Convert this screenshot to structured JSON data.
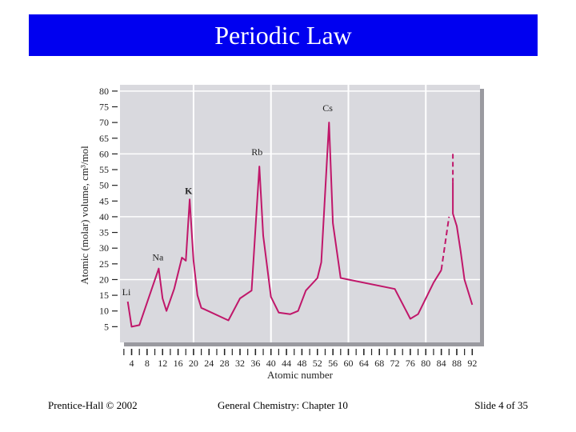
{
  "slide": {
    "title": "Periodic Law",
    "footer_left": "Prentice-Hall © 2002",
    "footer_center": "General Chemistry: Chapter 10",
    "footer_right": "Slide 4 of 35"
  },
  "colors": {
    "title_bar": "#0000f0",
    "line": "#c0176a",
    "plot_bg": "#d9d9de",
    "grid": "#ffffff"
  },
  "chart_data": {
    "type": "line",
    "title": "",
    "xlabel": "Atomic number",
    "ylabel": "Atomic (molar) volume, cm³/mol",
    "xlim": [
      1,
      94
    ],
    "ylim": [
      0,
      82
    ],
    "grid": true,
    "x_ticks": [
      4,
      8,
      12,
      16,
      20,
      24,
      28,
      32,
      36,
      40,
      44,
      48,
      52,
      56,
      60,
      64,
      68,
      72,
      76,
      80,
      84,
      88,
      92
    ],
    "y_ticks": [
      5,
      10,
      15,
      20,
      25,
      30,
      35,
      40,
      45,
      50,
      55,
      60,
      65,
      70,
      75,
      80
    ],
    "series": [
      {
        "values": [
          [
            3,
            13
          ],
          [
            4,
            5
          ],
          [
            6,
            5.5
          ],
          [
            11,
            23.5
          ],
          [
            12,
            14
          ],
          [
            13,
            10
          ],
          [
            15,
            17
          ],
          [
            17,
            27
          ],
          [
            18,
            26
          ],
          [
            19,
            45.5
          ],
          [
            20,
            26
          ],
          [
            21,
            15
          ],
          [
            22,
            11
          ],
          [
            29,
            7
          ],
          [
            32,
            14
          ],
          [
            35,
            16.5
          ],
          [
            37,
            56
          ],
          [
            38,
            34
          ],
          [
            40,
            14.5
          ],
          [
            42,
            9.5
          ],
          [
            45,
            9
          ],
          [
            47,
            10
          ],
          [
            49,
            16.5
          ],
          [
            52,
            20.5
          ],
          [
            53,
            25.5
          ],
          [
            55,
            70
          ],
          [
            56,
            38
          ],
          [
            58,
            20.5
          ],
          [
            72,
            17
          ],
          [
            76,
            7.5
          ],
          [
            78,
            9
          ],
          [
            82,
            19
          ],
          [
            84,
            23
          ]
        ],
        "dashed_values": [
          [
            84,
            23
          ],
          [
            86,
            40
          ]
        ],
        "extra_values": [
          [
            87,
            60
          ],
          [
            87,
            51
          ]
        ],
        "tail_values": [
          [
            87,
            51
          ],
          [
            87,
            41
          ],
          [
            88,
            37
          ],
          [
            89,
            29
          ],
          [
            90,
            20
          ],
          [
            92,
            12
          ]
        ]
      }
    ],
    "annotations": [
      {
        "text": "Li",
        "x": 3,
        "y": 13
      },
      {
        "text": "Na",
        "x": 11,
        "y": 23.5
      },
      {
        "text": "K",
        "x": 19,
        "y": 45.5
      },
      {
        "text": "Rb",
        "x": 37,
        "y": 56
      },
      {
        "text": "Cs",
        "x": 55,
        "y": 70
      }
    ]
  }
}
